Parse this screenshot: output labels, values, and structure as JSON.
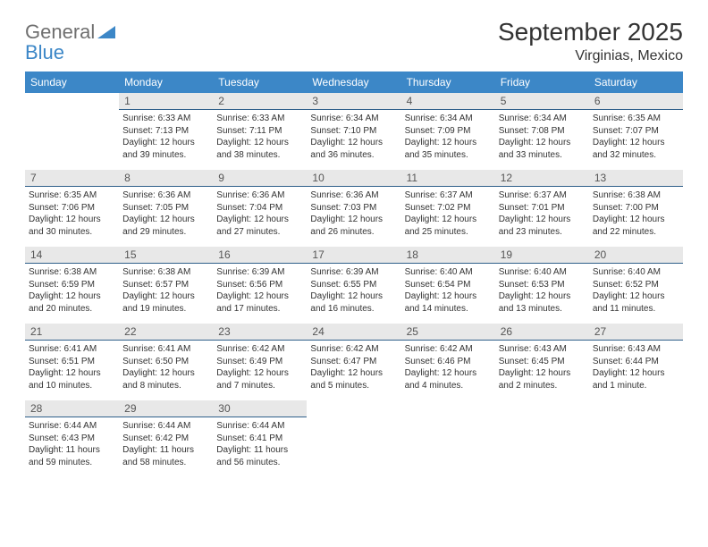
{
  "brand": {
    "word1": "General",
    "word2": "Blue"
  },
  "title": "September 2025",
  "location": "Virginias, Mexico",
  "colors": {
    "header_bg": "#3c87c7",
    "header_fg": "#ffffff",
    "daybar_bg": "#e8e8e8",
    "daybar_border": "#2f5f8a",
    "text": "#333333",
    "logo_gray": "#6f6f6f",
    "logo_blue": "#3c87c7",
    "page_bg": "#ffffff"
  },
  "fonts": {
    "title_size_pt": 21,
    "location_size_pt": 12,
    "weekday_size_pt": 9,
    "body_size_pt": 7.5
  },
  "weekdays": [
    "Sunday",
    "Monday",
    "Tuesday",
    "Wednesday",
    "Thursday",
    "Friday",
    "Saturday"
  ],
  "weeks": [
    [
      null,
      {
        "n": "1",
        "sr": "6:33 AM",
        "ss": "7:13 PM",
        "dl": "12 hours and 39 minutes."
      },
      {
        "n": "2",
        "sr": "6:33 AM",
        "ss": "7:11 PM",
        "dl": "12 hours and 38 minutes."
      },
      {
        "n": "3",
        "sr": "6:34 AM",
        "ss": "7:10 PM",
        "dl": "12 hours and 36 minutes."
      },
      {
        "n": "4",
        "sr": "6:34 AM",
        "ss": "7:09 PM",
        "dl": "12 hours and 35 minutes."
      },
      {
        "n": "5",
        "sr": "6:34 AM",
        "ss": "7:08 PM",
        "dl": "12 hours and 33 minutes."
      },
      {
        "n": "6",
        "sr": "6:35 AM",
        "ss": "7:07 PM",
        "dl": "12 hours and 32 minutes."
      }
    ],
    [
      {
        "n": "7",
        "sr": "6:35 AM",
        "ss": "7:06 PM",
        "dl": "12 hours and 30 minutes."
      },
      {
        "n": "8",
        "sr": "6:36 AM",
        "ss": "7:05 PM",
        "dl": "12 hours and 29 minutes."
      },
      {
        "n": "9",
        "sr": "6:36 AM",
        "ss": "7:04 PM",
        "dl": "12 hours and 27 minutes."
      },
      {
        "n": "10",
        "sr": "6:36 AM",
        "ss": "7:03 PM",
        "dl": "12 hours and 26 minutes."
      },
      {
        "n": "11",
        "sr": "6:37 AM",
        "ss": "7:02 PM",
        "dl": "12 hours and 25 minutes."
      },
      {
        "n": "12",
        "sr": "6:37 AM",
        "ss": "7:01 PM",
        "dl": "12 hours and 23 minutes."
      },
      {
        "n": "13",
        "sr": "6:38 AM",
        "ss": "7:00 PM",
        "dl": "12 hours and 22 minutes."
      }
    ],
    [
      {
        "n": "14",
        "sr": "6:38 AM",
        "ss": "6:59 PM",
        "dl": "12 hours and 20 minutes."
      },
      {
        "n": "15",
        "sr": "6:38 AM",
        "ss": "6:57 PM",
        "dl": "12 hours and 19 minutes."
      },
      {
        "n": "16",
        "sr": "6:39 AM",
        "ss": "6:56 PM",
        "dl": "12 hours and 17 minutes."
      },
      {
        "n": "17",
        "sr": "6:39 AM",
        "ss": "6:55 PM",
        "dl": "12 hours and 16 minutes."
      },
      {
        "n": "18",
        "sr": "6:40 AM",
        "ss": "6:54 PM",
        "dl": "12 hours and 14 minutes."
      },
      {
        "n": "19",
        "sr": "6:40 AM",
        "ss": "6:53 PM",
        "dl": "12 hours and 13 minutes."
      },
      {
        "n": "20",
        "sr": "6:40 AM",
        "ss": "6:52 PM",
        "dl": "12 hours and 11 minutes."
      }
    ],
    [
      {
        "n": "21",
        "sr": "6:41 AM",
        "ss": "6:51 PM",
        "dl": "12 hours and 10 minutes."
      },
      {
        "n": "22",
        "sr": "6:41 AM",
        "ss": "6:50 PM",
        "dl": "12 hours and 8 minutes."
      },
      {
        "n": "23",
        "sr": "6:42 AM",
        "ss": "6:49 PM",
        "dl": "12 hours and 7 minutes."
      },
      {
        "n": "24",
        "sr": "6:42 AM",
        "ss": "6:47 PM",
        "dl": "12 hours and 5 minutes."
      },
      {
        "n": "25",
        "sr": "6:42 AM",
        "ss": "6:46 PM",
        "dl": "12 hours and 4 minutes."
      },
      {
        "n": "26",
        "sr": "6:43 AM",
        "ss": "6:45 PM",
        "dl": "12 hours and 2 minutes."
      },
      {
        "n": "27",
        "sr": "6:43 AM",
        "ss": "6:44 PM",
        "dl": "12 hours and 1 minute."
      }
    ],
    [
      {
        "n": "28",
        "sr": "6:44 AM",
        "ss": "6:43 PM",
        "dl": "11 hours and 59 minutes."
      },
      {
        "n": "29",
        "sr": "6:44 AM",
        "ss": "6:42 PM",
        "dl": "11 hours and 58 minutes."
      },
      {
        "n": "30",
        "sr": "6:44 AM",
        "ss": "6:41 PM",
        "dl": "11 hours and 56 minutes."
      },
      null,
      null,
      null,
      null
    ]
  ],
  "labels": {
    "sunrise_prefix": "Sunrise: ",
    "sunset_prefix": "Sunset: ",
    "daylight_prefix": "Daylight: "
  }
}
